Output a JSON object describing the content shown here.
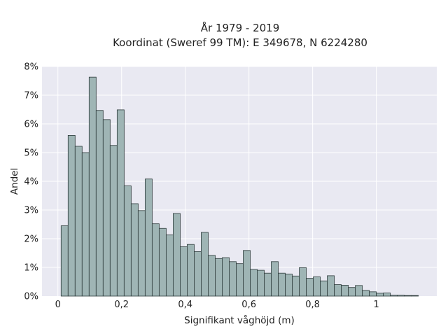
{
  "chart_data": {
    "type": "bar",
    "title": "År 1979 - 2019",
    "subtitle": "Koordinat (Sweref 99 TM): E 349678, N 6224280",
    "xlabel": "Signifikant våghöjd (m)",
    "ylabel": "Andel",
    "xlim": [
      -0.05,
      1.19
    ],
    "ylim": [
      0,
      8
    ],
    "x_ticks": [
      0,
      0.2,
      0.4,
      0.6,
      0.8,
      1
    ],
    "x_tick_labels": [
      "0",
      "0,2",
      "0,4",
      "0,6",
      "0,8",
      "1"
    ],
    "y_ticks": [
      0,
      1,
      2,
      3,
      4,
      5,
      6,
      7,
      8
    ],
    "y_tick_labels": [
      "0%",
      "1%",
      "2%",
      "3%",
      "4%",
      "5%",
      "6%",
      "7%",
      "8%"
    ],
    "grid": true,
    "bin_start": 0.01,
    "bin_width": 0.022,
    "values": [
      2.45,
      5.6,
      5.22,
      5.0,
      7.63,
      6.47,
      6.15,
      5.25,
      6.49,
      3.84,
      3.22,
      2.98,
      4.08,
      2.52,
      2.36,
      2.13,
      2.88,
      1.72,
      1.8,
      1.55,
      2.22,
      1.42,
      1.31,
      1.34,
      1.2,
      1.13,
      1.59,
      0.93,
      0.9,
      0.8,
      1.2,
      0.8,
      0.77,
      0.7,
      0.99,
      0.62,
      0.67,
      0.53,
      0.71,
      0.4,
      0.38,
      0.3,
      0.37,
      0.2,
      0.15,
      0.1,
      0.11,
      0.03,
      0.03,
      0.02,
      0.02
    ],
    "colors": {
      "plot_background": "#e9e9f2",
      "bar_fill": "#9fb5b5",
      "bar_stroke": "#2c3a3a",
      "grid": "#ffffff",
      "text": "#222222"
    }
  }
}
